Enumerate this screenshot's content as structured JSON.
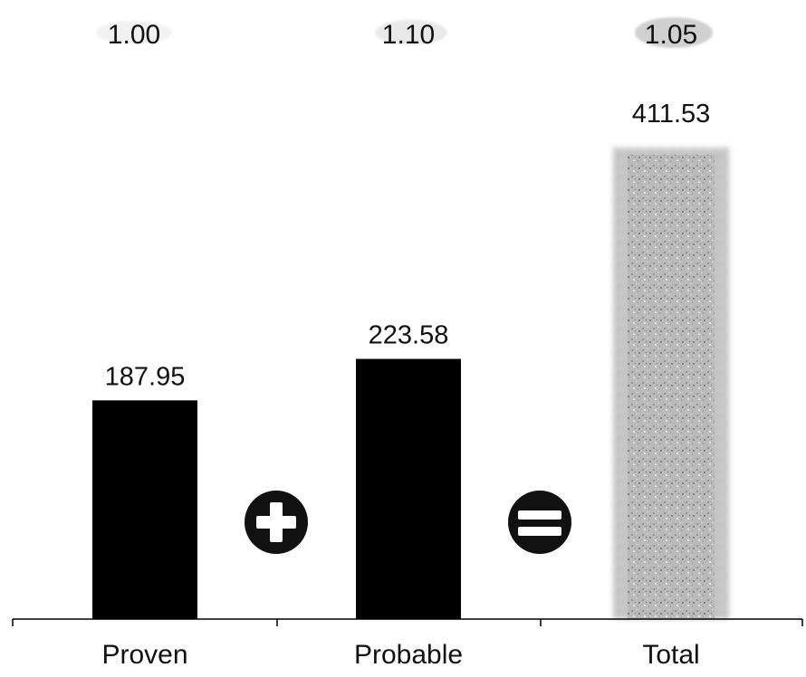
{
  "chart_data": {
    "type": "bar",
    "categories": [
      "Proven",
      "Probable",
      "Total"
    ],
    "values": [
      187.95,
      223.58,
      411.53
    ],
    "value_labels": [
      "187.95",
      "223.58",
      "411.53"
    ],
    "ratios": [
      "1.00",
      "1.10",
      "1.05"
    ],
    "operators": [
      "plus",
      "equals"
    ],
    "ylim": [
      0,
      420
    ],
    "title": "",
    "xlabel": "",
    "ylabel": "",
    "grid": false,
    "colors": {
      "proven": "#000000",
      "probable": "#000000",
      "total": "#b3b3b3",
      "ratio_badge": "#d8d8d8",
      "operator_circle": "#111111",
      "operator_symbol": "#ffffff",
      "axis": "#000000"
    }
  }
}
